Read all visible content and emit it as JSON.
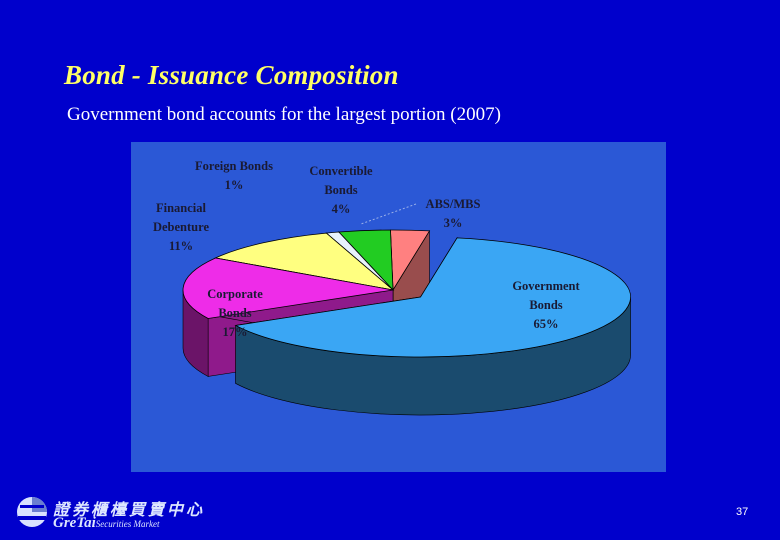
{
  "slide": {
    "title": "Bond - Issuance Composition",
    "subtitle": "Government bond accounts for the largest portion (2007)",
    "page_number": "37"
  },
  "logo": {
    "chinese_text": "證券櫃檯買賣中心",
    "english_main": "GreTai",
    "english_sub": "Securities Market"
  },
  "colors": {
    "background": "#0000cc",
    "chart_panel": "#2b58d6",
    "title": "#ffff66"
  },
  "chart_data": {
    "type": "pie",
    "style": "3d-exploded",
    "slices": [
      {
        "label": "Government Bonds",
        "label_lines": [
          "Government",
          "Bonds",
          "65%"
        ],
        "value": 65,
        "color": "#3aa6f4"
      },
      {
        "label": "Corporate Bonds",
        "label_lines": [
          "Corporate",
          "Bonds",
          "17%"
        ],
        "value": 17,
        "color": "#ee2ce8"
      },
      {
        "label": "Financial Debenture",
        "label_lines": [
          "Financial",
          "Debenture",
          "11%"
        ],
        "value": 11,
        "color": "#ffff80"
      },
      {
        "label": "Foreign Bonds",
        "label_lines": [
          "Foreign Bonds",
          "1%"
        ],
        "value": 1,
        "color": "#e8f2fc"
      },
      {
        "label": "Convertible Bonds",
        "label_lines": [
          "Convertible",
          "Bonds",
          "4%"
        ],
        "value": 4,
        "color": "#22cc22"
      },
      {
        "label": "ABS/MBS",
        "label_lines": [
          "ABS/MBS",
          "3%"
        ],
        "value": 3,
        "color": "#ff8080"
      }
    ]
  }
}
